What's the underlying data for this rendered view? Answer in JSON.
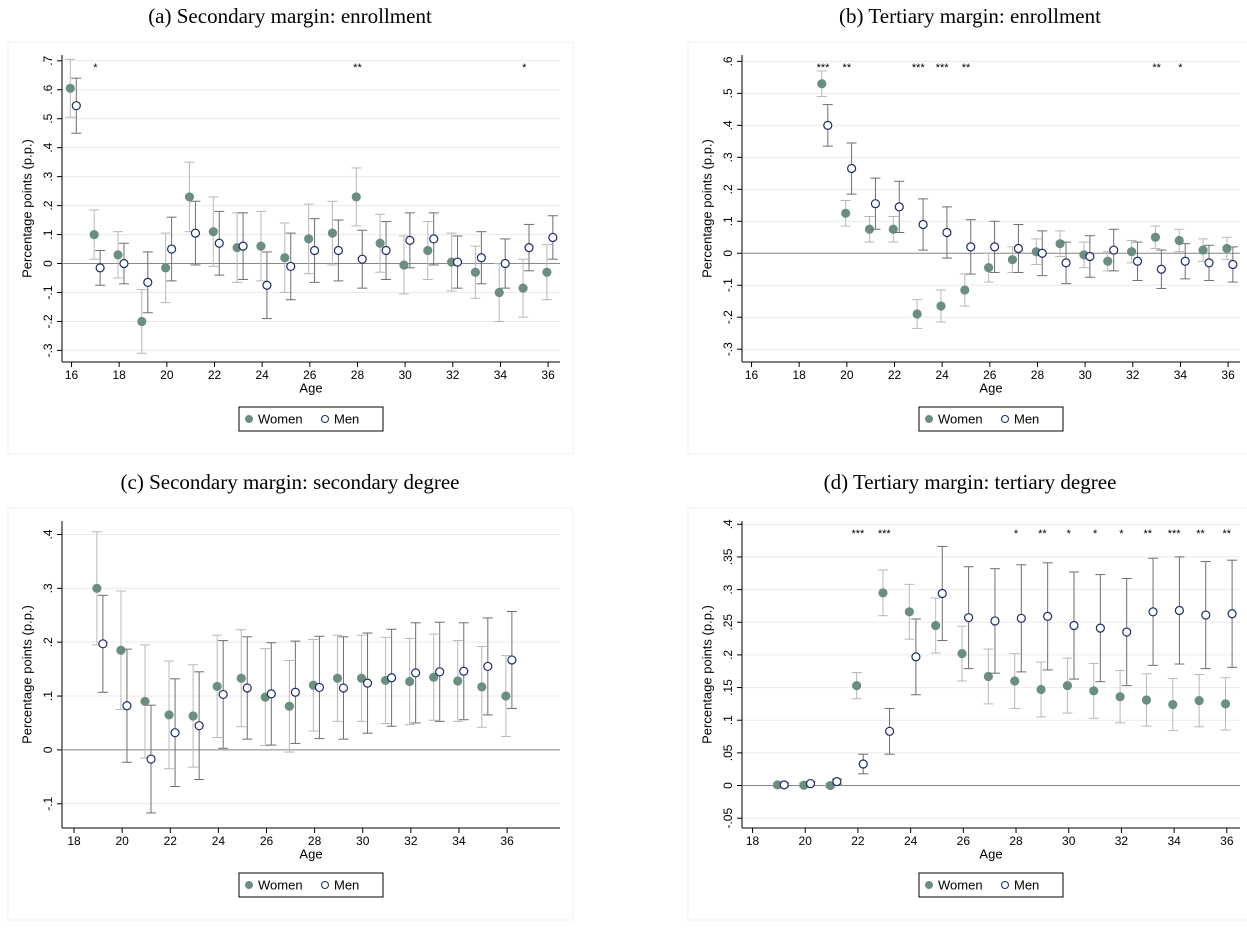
{
  "chart_data": [
    {
      "type": "errorbar",
      "title": "(a) Secondary margin: enrollment",
      "xlabel": "Age",
      "ylabel": "Percentage points (p.p.)",
      "x": [
        16,
        17,
        18,
        19,
        20,
        21,
        22,
        23,
        24,
        25,
        26,
        27,
        28,
        29,
        30,
        31,
        32,
        33,
        34,
        35,
        36
      ],
      "xlim": [
        15.6,
        36.5
      ],
      "xticks": [
        16,
        18,
        20,
        22,
        24,
        26,
        28,
        30,
        32,
        34,
        36
      ],
      "ylim": [
        -0.34,
        0.72
      ],
      "yticks": [
        {
          "value": -0.3,
          "label": "-.3"
        },
        {
          "value": -0.2,
          "label": "-.2"
        },
        {
          "value": -0.1,
          "label": "-.1"
        },
        0,
        {
          "value": 0.1,
          "label": ".1"
        },
        {
          "value": 0.2,
          "label": ".2"
        },
        {
          "value": 0.3,
          "label": ".3"
        },
        {
          "value": 0.4,
          "label": ".4"
        },
        {
          "value": 0.5,
          "label": ".5"
        },
        {
          "value": 0.6,
          "label": ".6"
        },
        {
          "value": 0.7,
          "label": ".7"
        }
      ],
      "grid": true,
      "series": [
        {
          "name": "Women",
          "color": "#6a8f7f",
          "error_color": "#b8b8b8",
          "marker": "filled",
          "values": [
            0.605,
            0.1,
            0.03,
            -0.2,
            -0.015,
            0.23,
            0.11,
            0.055,
            0.06,
            0.02,
            0.085,
            0.105,
            0.23,
            0.07,
            -0.005,
            0.045,
            0.005,
            -0.03,
            -0.1,
            -0.085,
            -0.03
          ],
          "errors": [
            0.1,
            0.085,
            0.08,
            0.11,
            0.12,
            0.12,
            0.12,
            0.12,
            0.12,
            0.12,
            0.12,
            0.11,
            0.1,
            0.1,
            0.1,
            0.1,
            0.1,
            0.09,
            0.1,
            0.1,
            0.095
          ]
        },
        {
          "name": "Men",
          "color": "#1b2a6b",
          "error_color": "#6e6e6e",
          "marker": "hollow",
          "values": [
            0.545,
            -0.015,
            0,
            -0.065,
            0.05,
            0.105,
            0.07,
            0.06,
            -0.075,
            -0.01,
            0.045,
            0.045,
            0.015,
            0.045,
            0.08,
            0.085,
            0.005,
            0.02,
            0,
            0.055,
            0.09
          ],
          "errors": [
            0.095,
            0.06,
            0.07,
            0.105,
            0.11,
            0.11,
            0.11,
            0.115,
            0.115,
            0.115,
            0.11,
            0.105,
            0.1,
            0.1,
            0.095,
            0.09,
            0.09,
            0.09,
            0.085,
            0.08,
            0.075
          ]
        }
      ],
      "annotations": [
        {
          "x": 17,
          "label": "*"
        },
        {
          "x": 28,
          "label": "**"
        },
        {
          "x": 35,
          "label": "*"
        }
      ]
    },
    {
      "type": "errorbar",
      "title": "(b) Tertiary margin: enrollment",
      "xlabel": "Age",
      "ylabel": "Percentage points (p.p.)",
      "x": [
        19,
        20,
        21,
        22,
        23,
        24,
        25,
        26,
        27,
        28,
        29,
        30,
        31,
        32,
        33,
        34,
        35,
        36
      ],
      "xlim": [
        15.6,
        36.5
      ],
      "xticks": [
        16,
        18,
        20,
        22,
        24,
        26,
        28,
        30,
        32,
        34,
        36
      ],
      "ylim": [
        -0.34,
        0.62
      ],
      "yticks": [
        {
          "value": -0.3,
          "label": "-.3"
        },
        {
          "value": -0.2,
          "label": "-.2"
        },
        {
          "value": -0.1,
          "label": "-.1"
        },
        0,
        {
          "value": 0.1,
          "label": ".1"
        },
        {
          "value": 0.2,
          "label": ".2"
        },
        {
          "value": 0.3,
          "label": ".3"
        },
        {
          "value": 0.4,
          "label": ".4"
        },
        {
          "value": 0.5,
          "label": ".5"
        },
        {
          "value": 0.6,
          "label": ".6"
        }
      ],
      "grid": true,
      "series": [
        {
          "name": "Women",
          "color": "#6a8f7f",
          "error_color": "#b8b8b8",
          "marker": "filled",
          "values": [
            0.53,
            0.125,
            0.075,
            0.075,
            -0.19,
            -0.165,
            -0.115,
            -0.045,
            -0.02,
            0.005,
            0.03,
            -0.005,
            -0.025,
            0.005,
            0.05,
            0.04,
            0.01,
            0.015
          ],
          "errors": [
            0.04,
            0.04,
            0.04,
            0.04,
            0.045,
            0.05,
            0.05,
            0.045,
            0.04,
            0.04,
            0.04,
            0.04,
            0.03,
            0.035,
            0.035,
            0.035,
            0.035,
            0.035
          ]
        },
        {
          "name": "Men",
          "color": "#1b2a6b",
          "error_color": "#6e6e6e",
          "marker": "hollow",
          "values": [
            0.4,
            0.265,
            0.155,
            0.145,
            0.09,
            0.065,
            0.02,
            0.02,
            0.015,
            0,
            -0.03,
            -0.01,
            0.01,
            -0.025,
            -0.05,
            -0.025,
            -0.03,
            -0.035
          ],
          "errors": [
            0.065,
            0.08,
            0.08,
            0.08,
            0.08,
            0.08,
            0.085,
            0.08,
            0.075,
            0.07,
            0.065,
            0.065,
            0.065,
            0.06,
            0.06,
            0.055,
            0.055,
            0.055
          ]
        }
      ],
      "annotations": [
        {
          "x": 19,
          "label": "***"
        },
        {
          "x": 20,
          "label": "**"
        },
        {
          "x": 23,
          "label": "***"
        },
        {
          "x": 24,
          "label": "***"
        },
        {
          "x": 25,
          "label": "**"
        },
        {
          "x": 33,
          "label": "**"
        },
        {
          "x": 34,
          "label": "*"
        }
      ]
    },
    {
      "type": "errorbar",
      "title": "(c) Secondary margin: secondary degree",
      "xlabel": "Age",
      "ylabel": "Percentage points (p.p.)",
      "x": [
        19,
        20,
        21,
        22,
        23,
        24,
        25,
        26,
        27,
        28,
        29,
        30,
        31,
        32,
        33,
        34,
        35,
        36
      ],
      "xlim": [
        17.5,
        38.2
      ],
      "xticks": [
        18,
        20,
        22,
        24,
        26,
        28,
        30,
        32,
        34,
        36
      ],
      "ylim": [
        -0.145,
        0.425
      ],
      "yticks": [
        {
          "value": -0.1,
          "label": "-.1"
        },
        0,
        {
          "value": 0.1,
          "label": ".1"
        },
        {
          "value": 0.2,
          "label": ".2"
        },
        {
          "value": 0.3,
          "label": ".3"
        },
        {
          "value": 0.4,
          "label": ".4"
        }
      ],
      "grid": true,
      "series": [
        {
          "name": "Women",
          "color": "#6a8f7f",
          "error_color": "#b8b8b8",
          "marker": "filled",
          "values": [
            0.3,
            0.185,
            0.09,
            0.065,
            0.063,
            0.118,
            0.133,
            0.098,
            0.081,
            0.12,
            0.133,
            0.133,
            0.129,
            0.127,
            0.135,
            0.128,
            0.117,
            0.1
          ],
          "errors": [
            0.105,
            0.11,
            0.105,
            0.1,
            0.095,
            0.095,
            0.09,
            0.09,
            0.085,
            0.085,
            0.08,
            0.08,
            0.08,
            0.08,
            0.08,
            0.075,
            0.075,
            0.075
          ]
        },
        {
          "name": "Men",
          "color": "#1b2a6b",
          "error_color": "#6e6e6e",
          "marker": "hollow",
          "values": [
            0.197,
            0.082,
            -0.017,
            0.032,
            0.045,
            0.103,
            0.115,
            0.104,
            0.107,
            0.116,
            0.115,
            0.124,
            0.134,
            0.143,
            0.145,
            0.146,
            0.155,
            0.167
          ],
          "errors": [
            0.09,
            0.105,
            0.1,
            0.1,
            0.1,
            0.1,
            0.095,
            0.095,
            0.095,
            0.095,
            0.095,
            0.093,
            0.09,
            0.093,
            0.092,
            0.09,
            0.09,
            0.09
          ]
        }
      ],
      "annotations": []
    },
    {
      "type": "errorbar",
      "title": "(d) Tertiary margin: tertiary degree",
      "xlabel": "Age",
      "ylabel": "Percentage points (p.p.)",
      "x": [
        19,
        20,
        21,
        22,
        23,
        24,
        25,
        26,
        27,
        28,
        29,
        30,
        31,
        32,
        33,
        34,
        35,
        36
      ],
      "xlim": [
        17.6,
        36.5
      ],
      "xticks": [
        18,
        20,
        22,
        24,
        26,
        28,
        30,
        32,
        34,
        36
      ],
      "ylim": [
        -0.065,
        0.405
      ],
      "yticks": [
        {
          "value": -0.05,
          "label": "-.05"
        },
        0,
        {
          "value": 0.05,
          "label": ".05"
        },
        {
          "value": 0.1,
          "label": ".1"
        },
        {
          "value": 0.15,
          "label": ".15"
        },
        {
          "value": 0.2,
          "label": ".2"
        },
        {
          "value": 0.25,
          "label": ".25"
        },
        {
          "value": 0.3,
          "label": ".3"
        },
        {
          "value": 0.35,
          "label": ".35"
        },
        {
          "value": 0.4,
          "label": ".4"
        }
      ],
      "grid": true,
      "series": [
        {
          "name": "Women",
          "color": "#6a8f7f",
          "error_color": "#b8b8b8",
          "marker": "filled",
          "values": [
            0.001,
            0.0005,
            0,
            0.153,
            0.295,
            0.266,
            0.245,
            0.202,
            0.167,
            0.16,
            0.147,
            0.153,
            0.145,
            0.136,
            0.131,
            0.124,
            0.13,
            0.125
          ],
          "errors": [
            0.003,
            0.003,
            0.003,
            0.02,
            0.035,
            0.042,
            0.042,
            0.042,
            0.042,
            0.042,
            0.042,
            0.042,
            0.042,
            0.04,
            0.04,
            0.04,
            0.04,
            0.04
          ]
        },
        {
          "name": "Men",
          "color": "#1b2a6b",
          "error_color": "#6e6e6e",
          "marker": "hollow",
          "values": [
            0.001,
            0.003,
            0.006,
            0.033,
            0.083,
            0.197,
            0.294,
            0.257,
            0.252,
            0.256,
            0.259,
            0.245,
            0.241,
            0.235,
            0.266,
            0.268,
            0.261,
            0.263
          ],
          "errors": [
            0.003,
            0.003,
            0.004,
            0.015,
            0.035,
            0.058,
            0.072,
            0.078,
            0.08,
            0.082,
            0.082,
            0.082,
            0.082,
            0.082,
            0.082,
            0.082,
            0.082,
            0.082
          ]
        }
      ],
      "annotations": [
        {
          "x": 22,
          "label": "***"
        },
        {
          "x": 23,
          "label": "***"
        },
        {
          "x": 28,
          "label": "*"
        },
        {
          "x": 29,
          "label": "**"
        },
        {
          "x": 30,
          "label": "*"
        },
        {
          "x": 31,
          "label": "*"
        },
        {
          "x": 32,
          "label": "*"
        },
        {
          "x": 33,
          "label": "**"
        },
        {
          "x": 34,
          "label": "***"
        },
        {
          "x": 35,
          "label": "**"
        },
        {
          "x": 36,
          "label": "**"
        }
      ]
    }
  ]
}
